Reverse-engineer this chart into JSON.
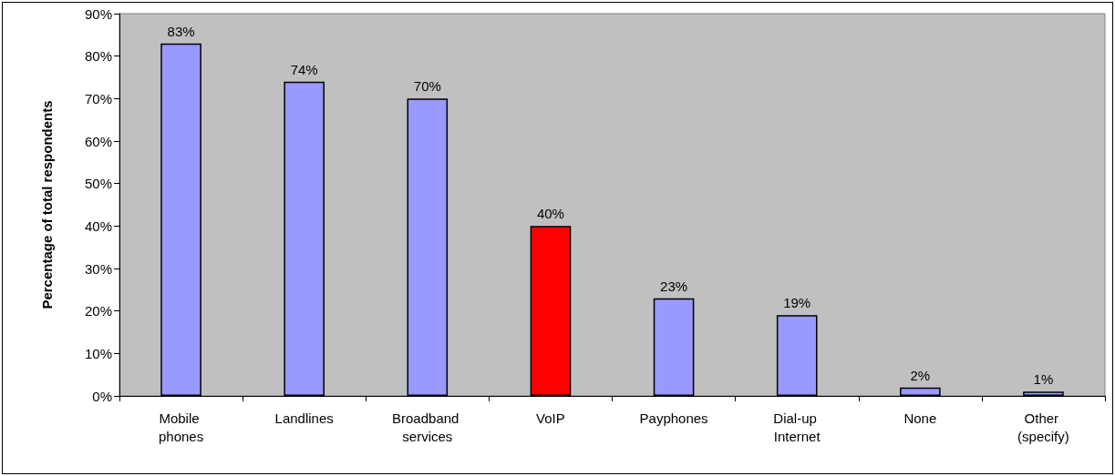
{
  "chart_data": {
    "type": "bar",
    "ylabel": "Percentage of total respondents",
    "categories": [
      "Mobile phones",
      "Landlines",
      "Broadband services",
      "VoIP",
      "Payphones",
      "Dial-up Internet",
      "None",
      "Other (specify)"
    ],
    "values": [
      83,
      74,
      70,
      40,
      23,
      19,
      2,
      1
    ],
    "colors": [
      "#9999ff",
      "#9999ff",
      "#9999ff",
      "#ff0000",
      "#9999ff",
      "#9999ff",
      "#9999ff",
      "#9999ff"
    ],
    "value_labels": [
      "83%",
      "74%",
      "70%",
      "40%",
      "23%",
      "19%",
      "2%",
      "1%"
    ],
    "ylim": [
      0,
      90
    ],
    "yticks": [
      {
        "value": 0,
        "label": "0%"
      },
      {
        "value": 10,
        "label": "10%"
      },
      {
        "value": 20,
        "label": "20%"
      },
      {
        "value": 30,
        "label": "30%"
      },
      {
        "value": 40,
        "label": "40%"
      },
      {
        "value": 50,
        "label": "50%"
      },
      {
        "value": 60,
        "label": "60%"
      },
      {
        "value": 70,
        "label": "70%"
      },
      {
        "value": 80,
        "label": "80%"
      },
      {
        "value": 90,
        "label": "90%"
      }
    ],
    "grid": false
  }
}
